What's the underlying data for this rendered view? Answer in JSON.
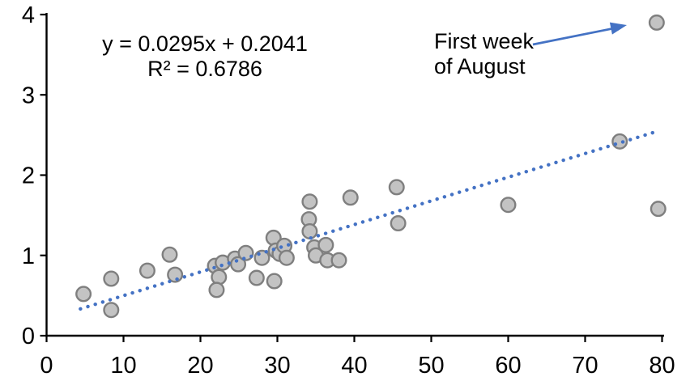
{
  "chart_data": {
    "type": "scatter",
    "title": "",
    "xlabel": "",
    "ylabel": "",
    "xlim": [
      0,
      80
    ],
    "ylim": [
      0,
      4
    ],
    "x_ticks": [
      0,
      10,
      20,
      30,
      40,
      50,
      60,
      70,
      80
    ],
    "y_ticks": [
      0,
      1,
      2,
      3,
      4
    ],
    "grid": false,
    "legend": false,
    "equation": "y = 0.0295x + 0.2041",
    "r_squared": "R² = 0.6786",
    "annotation": {
      "line1": "First week",
      "line2": "of August",
      "points_to": {
        "x": 79.3,
        "y": 3.9
      }
    },
    "points": [
      [
        4.8,
        0.52
      ],
      [
        8.4,
        0.71
      ],
      [
        8.4,
        0.32
      ],
      [
        13.1,
        0.81
      ],
      [
        16.0,
        1.01
      ],
      [
        16.7,
        0.76
      ],
      [
        21.9,
        0.87
      ],
      [
        22.9,
        0.91
      ],
      [
        22.4,
        0.73
      ],
      [
        22.1,
        0.57
      ],
      [
        24.5,
        0.96
      ],
      [
        24.9,
        0.89
      ],
      [
        25.9,
        1.03
      ],
      [
        27.3,
        0.72
      ],
      [
        28.0,
        0.97
      ],
      [
        29.5,
        1.22
      ],
      [
        29.8,
        1.06
      ],
      [
        29.6,
        0.68
      ],
      [
        30.3,
        1.02
      ],
      [
        30.9,
        1.12
      ],
      [
        31.2,
        0.97
      ],
      [
        34.2,
        1.67
      ],
      [
        34.1,
        1.45
      ],
      [
        34.2,
        1.3
      ],
      [
        34.8,
        1.1
      ],
      [
        35.0,
        1.0
      ],
      [
        36.3,
        1.13
      ],
      [
        36.5,
        0.94
      ],
      [
        38.0,
        0.94
      ],
      [
        39.5,
        1.72
      ],
      [
        45.5,
        1.85
      ],
      [
        45.7,
        1.4
      ],
      [
        60.0,
        1.63
      ],
      [
        74.5,
        2.42
      ],
      [
        79.3,
        3.9
      ],
      [
        79.5,
        1.58
      ]
    ],
    "trendline": {
      "type": "linear",
      "slope": 0.0295,
      "intercept": 0.2041,
      "x_start": 4.4,
      "x_end": 79.0,
      "style": "dotted"
    },
    "colors": {
      "text": "#000000",
      "axis": "#000000",
      "trend": "#4472c4",
      "arrow": "#4472c4",
      "marker_fill": "#c3c3c3",
      "marker_stroke": "#7f7f7f"
    }
  }
}
